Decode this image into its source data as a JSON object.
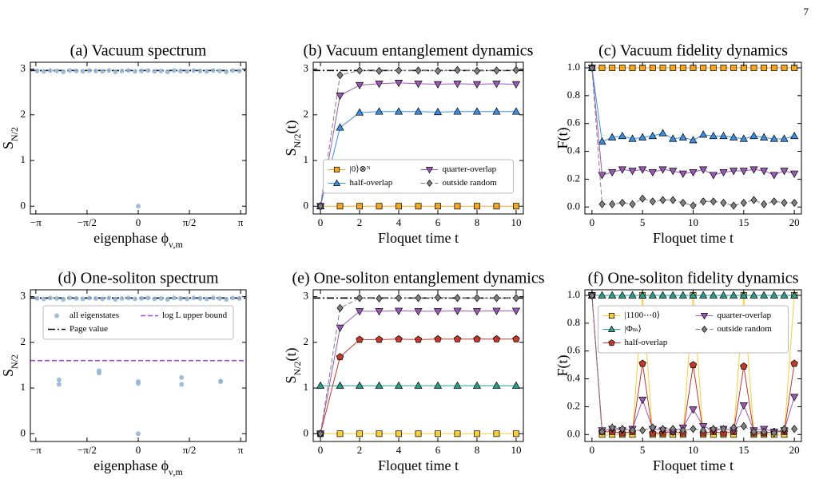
{
  "page_number": "7",
  "chart_data": [
    {
      "type": "scatter",
      "title": "(a) Vacuum spectrum",
      "xlabel": {
        "text": "eigenphase ϕ",
        "sub": "ν,m"
      },
      "ylabel": {
        "text": "S",
        "sub": "N/2"
      },
      "xlim": [
        -3.31,
        3.31
      ],
      "ylim": [
        -0.17,
        3.15
      ],
      "xticks": [
        {
          "value": -3.1416,
          "label": "−π"
        },
        {
          "value": -1.5708,
          "label": "−π/2"
        },
        0,
        {
          "value": 1.5708,
          "label": "π/2"
        },
        {
          "value": 3.1416,
          "label": "π"
        }
      ],
      "yticks": [
        0,
        1,
        2,
        3
      ],
      "x": [
        -3.1,
        -2.9,
        -2.7,
        -2.5,
        -2.3,
        -2.1,
        -1.9,
        -1.7,
        -1.5,
        -1.3,
        -1.1,
        -0.9,
        -0.7,
        -0.5,
        -0.3,
        -0.1,
        0.1,
        0.3,
        0.5,
        0.7,
        0.9,
        1.1,
        1.3,
        1.5,
        1.7,
        1.9,
        2.1,
        2.3,
        2.5,
        2.7,
        2.9,
        3.1,
        0
      ],
      "series": [
        {
          "color": "#8fb3d3",
          "marker": "circle",
          "values": [
            2.96,
            2.95,
            2.97,
            2.96,
            2.94,
            2.97,
            2.96,
            2.95,
            2.97,
            2.96,
            2.95,
            2.97,
            2.94,
            2.96,
            2.97,
            2.95,
            2.96,
            2.97,
            2.95,
            2.96,
            2.94,
            2.97,
            2.96,
            2.95,
            2.97,
            2.96,
            2.95,
            2.97,
            2.96,
            2.94,
            2.97,
            2.96,
            0
          ]
        }
      ],
      "hlines": [
        {
          "y": 2.97,
          "color": "#000000",
          "linestyle": "dashdot"
        }
      ]
    },
    {
      "type": "line",
      "title": "(b) Vacuum entanglement dynamics",
      "xlabel": "Floquet time t",
      "ylabel": {
        "text": "S",
        "sub": "N/2",
        "after": "(t)"
      },
      "xlim": [
        -0.37,
        10.37
      ],
      "ylim": [
        -0.17,
        3.15
      ],
      "xticks": [
        0,
        2,
        4,
        6,
        8,
        10
      ],
      "yticks": [
        0,
        1,
        2,
        3
      ],
      "x": [
        0,
        1,
        2,
        3,
        4,
        5,
        6,
        7,
        8,
        9,
        10
      ],
      "series": [
        {
          "name": "|0⟩⊗ᴺ",
          "color": "#f5a623",
          "marker": "square",
          "linestyle": "solid",
          "values": [
            0,
            0,
            0,
            0,
            0,
            0,
            0,
            0,
            0,
            0,
            0
          ]
        },
        {
          "name": "half-overlap",
          "color": "#3d8fe0",
          "marker": "triangle-up",
          "linestyle": "solid",
          "values": [
            0,
            1.72,
            2.05,
            2.07,
            2.07,
            2.07,
            2.06,
            2.07,
            2.07,
            2.07,
            2.07
          ]
        },
        {
          "name": "quarter-overlap",
          "color": "#9b59b6",
          "marker": "triangle-down",
          "linestyle": "solid",
          "values": [
            0,
            2.42,
            2.65,
            2.68,
            2.7,
            2.68,
            2.67,
            2.68,
            2.67,
            2.68,
            2.67
          ]
        },
        {
          "name": "outside random",
          "color": "#808080",
          "marker": "diamond",
          "linestyle": "dashed",
          "values": [
            0,
            2.87,
            2.97,
            2.96,
            2.97,
            2.97,
            2.96,
            2.98,
            2.96,
            2.97,
            2.98
          ]
        }
      ],
      "hlines": [
        {
          "y": 2.97,
          "color": "#000000",
          "linestyle": "dashdot"
        }
      ],
      "legend": {
        "loc": "lower center",
        "ncol": 2
      }
    },
    {
      "type": "line",
      "title": "(c) Vacuum fidelity dynamics",
      "xlabel": "Floquet time t",
      "ylabel": "F(t)",
      "xlim": [
        -0.7,
        20.7
      ],
      "ylim": [
        -0.05,
        1.04
      ],
      "xticks": [
        0,
        5,
        10,
        15,
        20
      ],
      "yticks": [
        {
          "value": 0,
          "label": "0.0"
        },
        0.2,
        0.4,
        0.6,
        0.8,
        {
          "value": 1,
          "label": "1.0"
        }
      ],
      "x": [
        0,
        1,
        2,
        3,
        4,
        5,
        6,
        7,
        8,
        9,
        10,
        11,
        12,
        13,
        14,
        15,
        16,
        17,
        18,
        19,
        20
      ],
      "series": [
        {
          "color": "#f5a623",
          "marker": "square",
          "linestyle": "solid",
          "values": [
            1,
            1,
            1,
            1,
            1,
            1,
            1,
            1,
            1,
            1,
            1,
            1,
            1,
            1,
            1,
            1,
            1,
            1,
            1,
            1,
            1
          ]
        },
        {
          "color": "#3d8fe0",
          "marker": "triangle-up",
          "linestyle": "solid",
          "values": [
            1,
            0.47,
            0.5,
            0.51,
            0.49,
            0.5,
            0.51,
            0.53,
            0.49,
            0.5,
            0.48,
            0.52,
            0.51,
            0.51,
            0.5,
            0.49,
            0.51,
            0.5,
            0.49,
            0.49,
            0.51
          ]
        },
        {
          "color": "#9b59b6",
          "marker": "triangle-down",
          "linestyle": "solid",
          "values": [
            1,
            0.23,
            0.25,
            0.27,
            0.26,
            0.27,
            0.25,
            0.27,
            0.26,
            0.24,
            0.25,
            0.27,
            0.23,
            0.25,
            0.26,
            0.26,
            0.27,
            0.26,
            0.23,
            0.26,
            0.24
          ]
        },
        {
          "color": "#808080",
          "marker": "diamond",
          "linestyle": "dashed",
          "values": [
            1,
            0.02,
            0.02,
            0.03,
            0.02,
            0.06,
            0.04,
            0.05,
            0.05,
            0.03,
            0.01,
            0.04,
            0.04,
            0.03,
            0.01,
            0.03,
            0.05,
            0.02,
            0.04,
            0.03,
            0.03
          ]
        }
      ]
    },
    {
      "type": "scatter",
      "title": "(d) One-soliton spectrum",
      "xlabel": {
        "text": "eigenphase ϕ",
        "sub": "ν,m"
      },
      "ylabel": {
        "text": "S",
        "sub": "N/2"
      },
      "xlim": [
        -3.31,
        3.31
      ],
      "ylim": [
        -0.17,
        3.15
      ],
      "xticks": [
        {
          "value": -3.1416,
          "label": "−π"
        },
        {
          "value": -1.5708,
          "label": "−π/2"
        },
        0,
        {
          "value": 1.5708,
          "label": "π/2"
        },
        {
          "value": 3.1416,
          "label": "π"
        }
      ],
      "yticks": [
        0,
        1,
        2,
        3
      ],
      "x": [
        -3.1,
        -2.9,
        -2.7,
        -2.5,
        -2.3,
        -2.1,
        -1.9,
        -1.7,
        -1.5,
        -1.3,
        -1.1,
        -0.9,
        -0.7,
        -0.5,
        -0.3,
        -0.1,
        0.1,
        0.3,
        0.5,
        0.7,
        0.9,
        1.1,
        1.3,
        1.5,
        1.7,
        1.9,
        2.1,
        2.3,
        2.5,
        2.7,
        2.9,
        3.1,
        -2.43,
        -2.43,
        -1.2,
        -1.2,
        0,
        0,
        0,
        1.33,
        1.33,
        2.53,
        2.53
      ],
      "series": [
        {
          "name": "all eigenstates",
          "color": "#8fb3d3",
          "marker": "circle",
          "values": [
            2.96,
            2.95,
            2.97,
            2.96,
            2.94,
            2.97,
            2.96,
            2.95,
            2.97,
            2.96,
            2.95,
            2.97,
            2.94,
            2.96,
            2.97,
            2.95,
            2.96,
            2.97,
            2.95,
            2.96,
            2.94,
            2.97,
            2.96,
            2.95,
            2.97,
            2.96,
            2.95,
            2.97,
            2.96,
            2.94,
            2.97,
            2.96,
            1.18,
            1.08,
            1.38,
            1.33,
            1.14,
            1.1,
            0,
            1.23,
            1.08,
            1.15,
            1.14
          ]
        }
      ],
      "hlines": [
        {
          "name": "Page value",
          "y": 2.97,
          "color": "#000000",
          "linestyle": "dashdot"
        },
        {
          "name": "log L upper bound",
          "y": 1.6,
          "color": "#9b4fd6",
          "linestyle": "dashed"
        }
      ],
      "legend": {
        "loc": "upper center",
        "ncol": 2
      }
    },
    {
      "type": "line",
      "title": "(e) One-soliton entanglement dynamics",
      "xlabel": "Floquet time t",
      "ylabel": {
        "text": "S",
        "sub": "N/2",
        "after": "(t)"
      },
      "xlim": [
        -0.37,
        10.37
      ],
      "ylim": [
        -0.17,
        3.15
      ],
      "xticks": [
        0,
        2,
        4,
        6,
        8,
        10
      ],
      "yticks": [
        0,
        1,
        2,
        3
      ],
      "x": [
        0,
        1,
        2,
        3,
        4,
        5,
        6,
        7,
        8,
        9,
        10
      ],
      "series": [
        {
          "color": "#f5cf3a",
          "marker": "square",
          "linestyle": "solid",
          "values": [
            0,
            0,
            0,
            0,
            0,
            0,
            0,
            0,
            0,
            0,
            0
          ]
        },
        {
          "color": "#2a9d8f",
          "marker": "triangle-up",
          "linestyle": "solid",
          "values": [
            1.05,
            1.05,
            1.05,
            1.05,
            1.05,
            1.05,
            1.05,
            1.05,
            1.05,
            1.05,
            1.05
          ]
        },
        {
          "color": "#c0392b",
          "marker": "pentagon",
          "linestyle": "solid",
          "values": [
            0,
            1.68,
            2.06,
            2.06,
            2.07,
            2.06,
            2.07,
            2.07,
            2.07,
            2.07,
            2.07
          ]
        },
        {
          "color": "#9b59b6",
          "marker": "triangle-down",
          "linestyle": "solid",
          "values": [
            0,
            2.32,
            2.68,
            2.68,
            2.69,
            2.68,
            2.68,
            2.69,
            2.68,
            2.69,
            2.69
          ]
        },
        {
          "color": "#808080",
          "marker": "diamond",
          "linestyle": "dashed",
          "values": [
            0,
            2.75,
            2.97,
            2.96,
            2.97,
            2.97,
            2.98,
            2.97,
            2.97,
            2.97,
            2.97
          ]
        }
      ],
      "hlines": [
        {
          "y": 2.97,
          "color": "#000000",
          "linestyle": "dashdot"
        }
      ]
    },
    {
      "type": "line",
      "title": "(f) One-soliton fidelity dynamics",
      "xlabel": "Floquet time t",
      "ylabel": "F(t)",
      "xlim": [
        -0.7,
        20.7
      ],
      "ylim": [
        -0.05,
        1.04
      ],
      "xticks": [
        0,
        5,
        10,
        15,
        20
      ],
      "yticks": [
        {
          "value": 0,
          "label": "0.0"
        },
        0.2,
        0.4,
        0.6,
        0.8,
        {
          "value": 1,
          "label": "1.0"
        }
      ],
      "x": [
        0,
        1,
        2,
        3,
        4,
        5,
        6,
        7,
        8,
        9,
        10,
        11,
        12,
        13,
        14,
        15,
        16,
        17,
        18,
        19,
        20
      ],
      "series": [
        {
          "name": "|1100⋯0⟩",
          "color": "#f5cf3a",
          "marker": "square",
          "linestyle": "solid",
          "values": [
            1,
            0,
            0,
            0,
            0,
            1,
            0,
            0,
            0,
            0,
            1,
            0,
            0,
            0,
            0,
            1,
            0,
            0,
            0,
            0,
            1
          ]
        },
        {
          "name": "|Φₘ⟩",
          "color": "#2a9d8f",
          "marker": "triangle-up",
          "linestyle": "solid",
          "values": [
            1,
            1,
            1,
            1,
            1,
            1,
            1,
            1,
            1,
            1,
            1,
            1,
            1,
            1,
            1,
            1,
            1,
            1,
            1,
            1,
            1
          ]
        },
        {
          "name": "half-overlap",
          "color": "#c0392b",
          "marker": "pentagon",
          "linestyle": "solid",
          "values": [
            1,
            0.02,
            0.02,
            0.01,
            0.02,
            0.51,
            0.01,
            0.01,
            0.02,
            0.01,
            0.5,
            0.01,
            0.02,
            0.01,
            0.02,
            0.49,
            0.01,
            0.01,
            0.02,
            0.02,
            0.51
          ]
        },
        {
          "name": "quarter-overlap",
          "color": "#9b59b6",
          "marker": "triangle-down",
          "linestyle": "solid",
          "values": [
            1,
            0.03,
            0.04,
            0.03,
            0.04,
            0.25,
            0.04,
            0.03,
            0.02,
            0.05,
            0.18,
            0.06,
            0.03,
            0.04,
            0.03,
            0.21,
            0.03,
            0.04,
            0.02,
            0.03,
            0.27
          ]
        },
        {
          "name": "outside random",
          "color": "#808080",
          "marker": "diamond",
          "linestyle": "dashed",
          "values": [
            1,
            0.02,
            0.05,
            0.04,
            0.03,
            0.03,
            0.05,
            0.04,
            0.04,
            0.03,
            0.04,
            0.03,
            0.04,
            0.04,
            0.05,
            0.06,
            0.02,
            0.02,
            0.01,
            0.04,
            0.04
          ]
        }
      ],
      "legend": {
        "loc": "upper center",
        "ncol": 2
      }
    }
  ]
}
